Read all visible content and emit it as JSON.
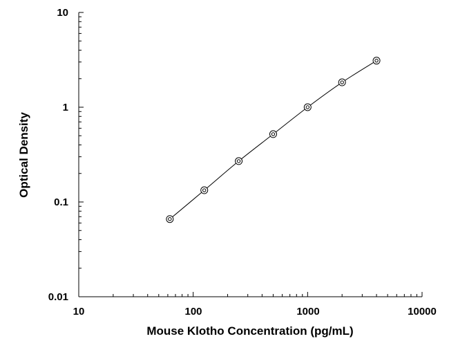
{
  "chart_data": {
    "type": "scatter",
    "xlabel": "Mouse Klotho Concentration (pg/mL)",
    "ylabel": "Optical Density",
    "x_scale": "log",
    "y_scale": "log",
    "xlim": [
      10,
      10000
    ],
    "ylim": [
      0.01,
      10
    ],
    "x_ticks": [
      "10",
      "100",
      "1000",
      "10000"
    ],
    "y_ticks": [
      "0.01",
      "0.1",
      "1",
      "10"
    ],
    "grid": false,
    "legend": "none",
    "line_color": "#000000",
    "series": [
      {
        "x": [
          62.5,
          125,
          250,
          500,
          1000,
          2000,
          4000
        ],
        "y": [
          0.066,
          0.133,
          0.27,
          0.52,
          1.0,
          1.83,
          3.1
        ],
        "marker": "circle-open",
        "line": "smooth"
      }
    ]
  }
}
